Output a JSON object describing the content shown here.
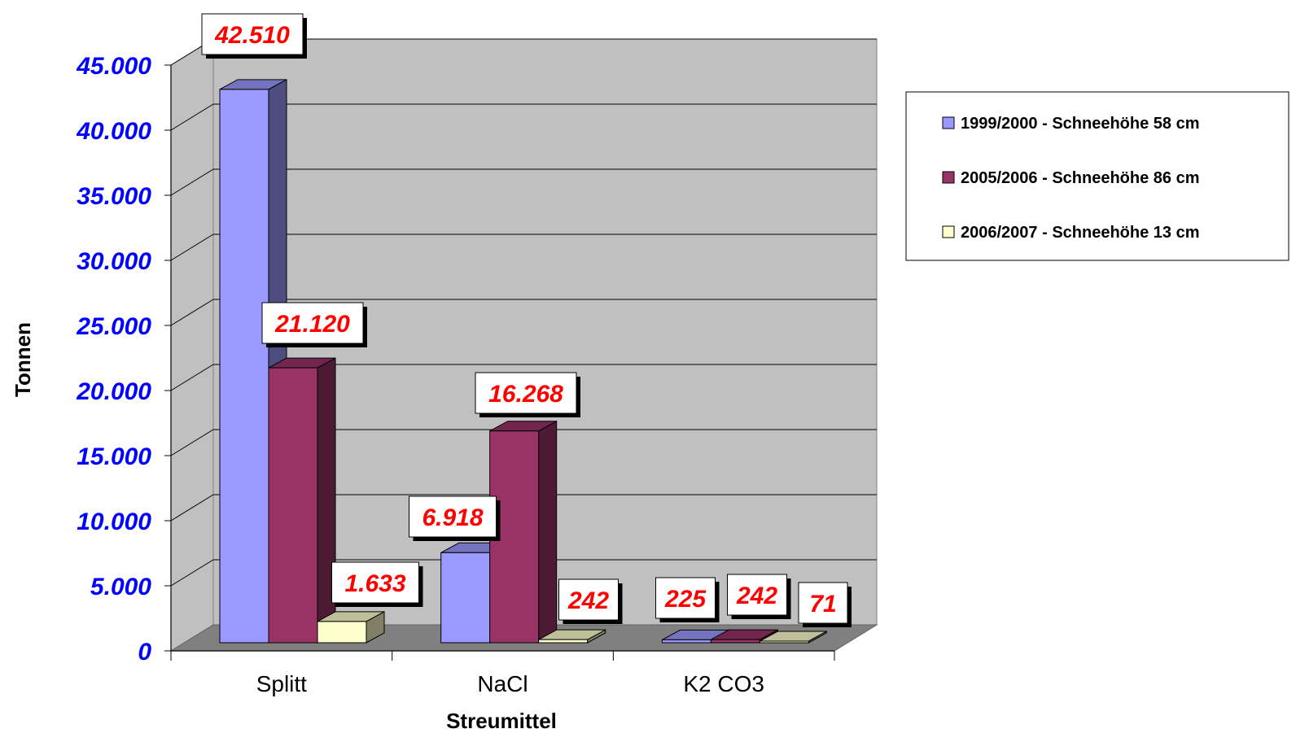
{
  "chart_data": {
    "type": "bar",
    "title": "",
    "xlabel": "Streumittel",
    "ylabel": "Tonnen",
    "categories": [
      "Splitt",
      "NaCl",
      "K2 CO3"
    ],
    "series": [
      {
        "name": "1999/2000 - Schneehöhe 58 cm",
        "values": [
          42510,
          6918,
          225
        ],
        "labels": [
          "42.510",
          "6.918",
          "225"
        ],
        "color": "#9999FF",
        "side_color": "#4D4D80",
        "top_color": "#7373BF"
      },
      {
        "name": "2005/2006 - Schneehöhe 86 cm",
        "values": [
          21120,
          16268,
          242
        ],
        "labels": [
          "21.120",
          "16.268",
          "242"
        ],
        "color": "#993366",
        "side_color": "#4D1A33",
        "top_color": "#73264D"
      },
      {
        "name": "2006/2007 - Schneehöhe 13 cm",
        "values": [
          1633,
          242,
          71
        ],
        "labels": [
          "1.633",
          "242",
          "71"
        ],
        "color": "#FFFFCC",
        "side_color": "#808066",
        "top_color": "#BFBF99"
      }
    ],
    "ylim": [
      0,
      45000
    ],
    "yticks": [
      0,
      5000,
      10000,
      15000,
      20000,
      25000,
      30000,
      35000,
      40000,
      45000
    ],
    "ytick_labels": [
      "0",
      "5.000",
      "10.000",
      "15.000",
      "20.000",
      "25.000",
      "30.000",
      "35.000",
      "40.000",
      "45.000"
    ],
    "grid": true,
    "legend_position": "right",
    "style": "3d-clustered-column",
    "colors": {
      "ytick_label": "#0000FF",
      "data_label": "#FF0000",
      "wall": "#C0C0C0",
      "floor": "#808080",
      "gridline": "#000000"
    }
  }
}
